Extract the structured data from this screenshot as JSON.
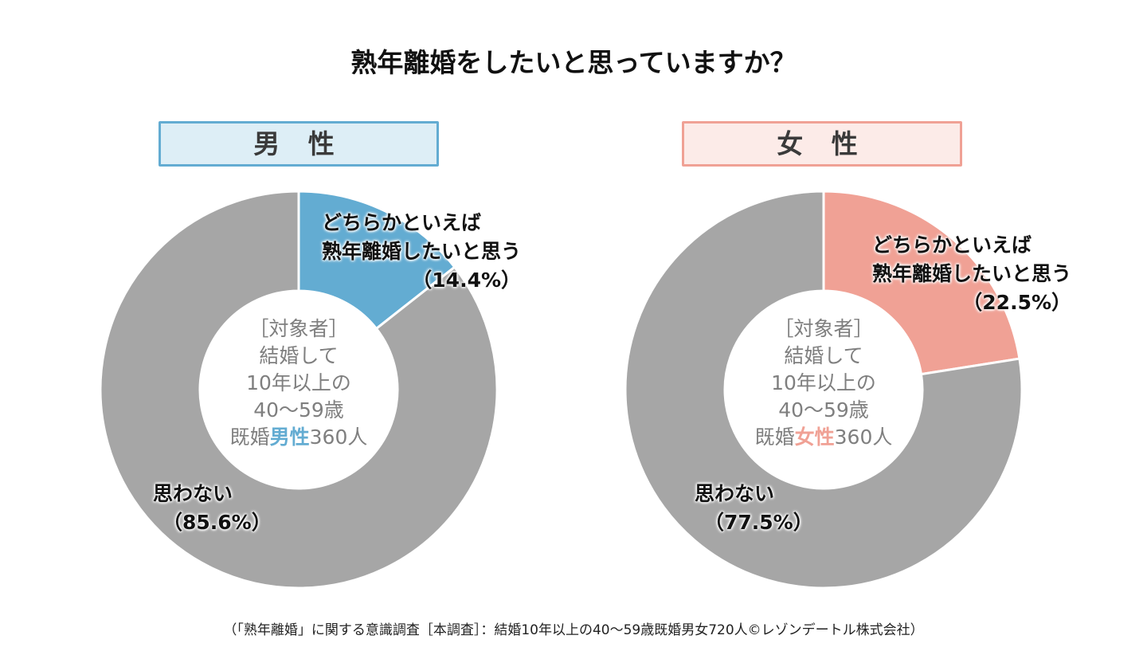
{
  "title": "熟年離婚をしたいと思っていますか？",
  "colors": {
    "male_accent": "#63acd2",
    "female_accent": "#f0a195",
    "no_slice": "#a6a6a6",
    "center_text": "#7f7f7f"
  },
  "panels": [
    {
      "header": "男 性",
      "center": {
        "line1": "［対象者］",
        "line2": "結婚して",
        "line3": "10年以上の",
        "line4": "40～59歳",
        "line5_prefix": "既婚",
        "line5_highlight": "男性",
        "line5_suffix": "360人"
      },
      "labels": {
        "yes_line1": "どちらかといえば",
        "yes_line2": "熟年離婚したいと思う",
        "yes_pct": "（14.4%）",
        "no_line1": "思わない",
        "no_pct": "（85.6%）"
      }
    },
    {
      "header": "女 性",
      "center": {
        "line1": "［対象者］",
        "line2": "結婚して",
        "line3": "10年以上の",
        "line4": "40～59歳",
        "line5_prefix": "既婚",
        "line5_highlight": "女性",
        "line5_suffix": "360人"
      },
      "labels": {
        "yes_line1": "どちらかといえば",
        "yes_line2": "熟年離婚したいと思う",
        "yes_pct": "（22.5%）",
        "no_line1": "思わない",
        "no_pct": "（77.5%）"
      }
    }
  ],
  "footer": "（「熟年離婚」に関する意識調査［本調査］：結婚10年以上の40～59歳既婚男女720人©レゾンデートル株式会社）",
  "chart_data": [
    {
      "type": "pie",
      "donut": true,
      "title": "男 性",
      "categories": [
        "どちらかといえば熟年離婚したいと思う",
        "思わない"
      ],
      "values": [
        14.4,
        85.6
      ],
      "unit": "%",
      "colors": [
        "#63acd2",
        "#a6a6a6"
      ],
      "start": "top",
      "direction": "clockwise"
    },
    {
      "type": "pie",
      "donut": true,
      "title": "女 性",
      "categories": [
        "どちらかといえば熟年離婚したいと思う",
        "思わない"
      ],
      "values": [
        22.5,
        77.5
      ],
      "unit": "%",
      "colors": [
        "#f0a195",
        "#a6a6a6"
      ],
      "start": "top",
      "direction": "clockwise"
    }
  ]
}
